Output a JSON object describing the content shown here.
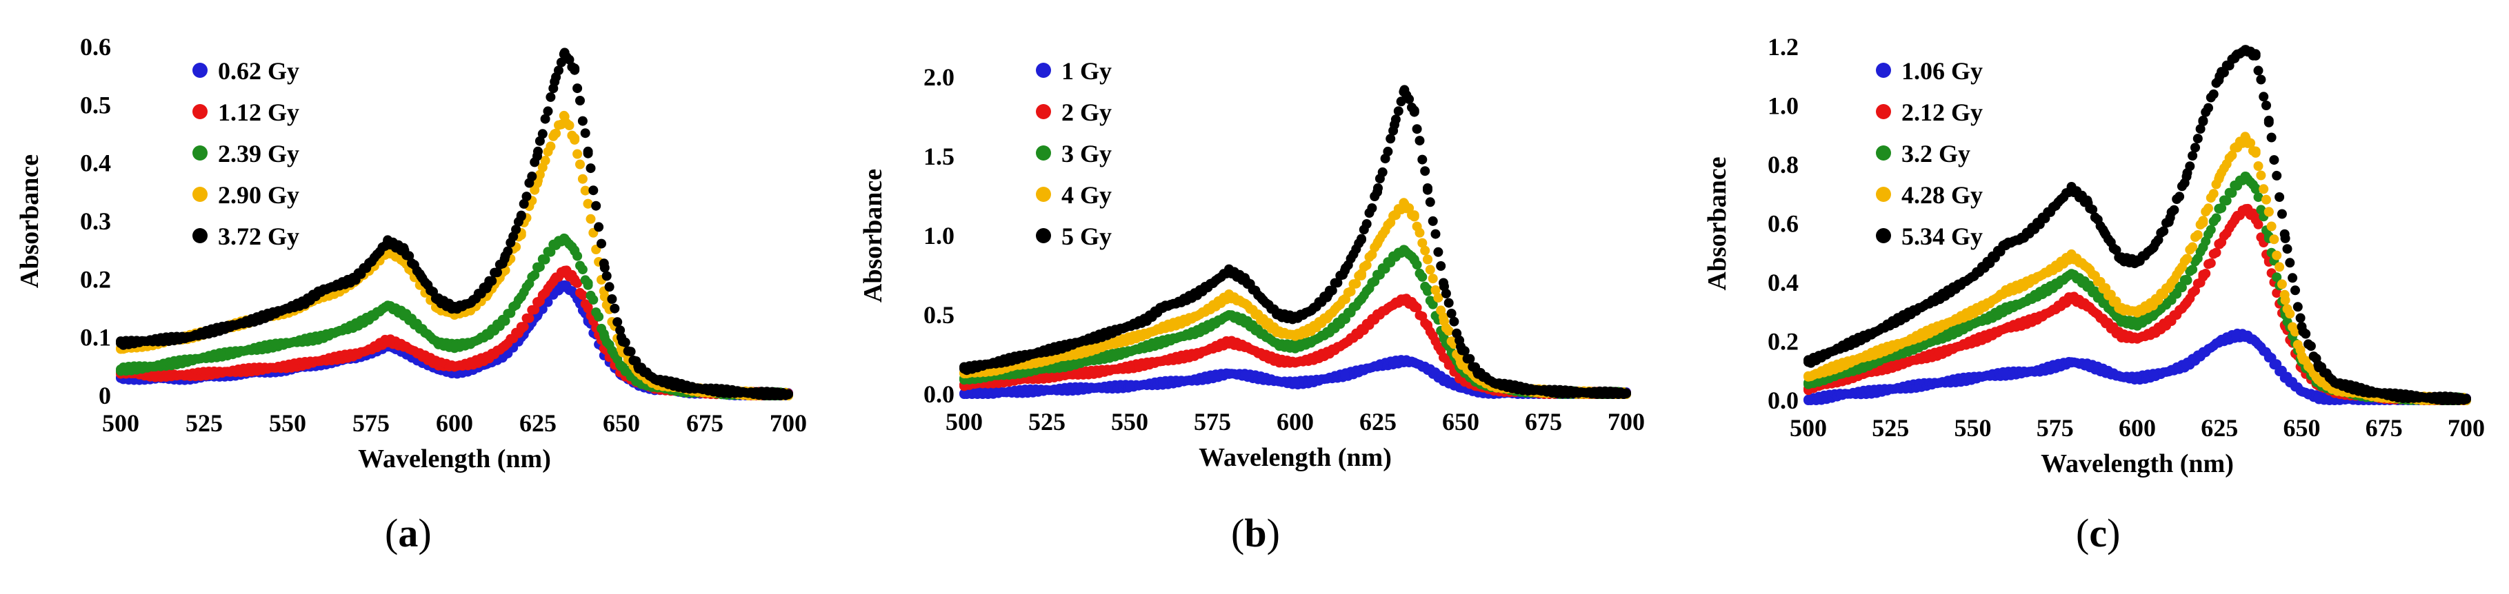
{
  "figure": {
    "captions": [
      "a",
      "b",
      "c"
    ]
  },
  "chart_data": [
    {
      "type": "scatter",
      "id": "a",
      "xlabel": "Wavelength (nm)",
      "ylabel": "Absorbance",
      "xlim": [
        500,
        700
      ],
      "ylim": [
        0,
        0.6
      ],
      "xticks": [
        500,
        525,
        550,
        575,
        600,
        625,
        650,
        675,
        700
      ],
      "xtick_labels": [
        "500",
        "525",
        "550",
        "575",
        "600",
        "625",
        "650",
        "675",
        "700"
      ],
      "yticks": [
        0,
        0.1,
        0.2,
        0.3,
        0.4,
        0.5,
        0.6
      ],
      "ytick_labels": [
        "0",
        "0.1",
        "0.2",
        "0.3",
        "0.4",
        "0.5",
        "0.6"
      ],
      "legend_position": "top-left",
      "x": [
        500,
        510,
        520,
        530,
        540,
        550,
        555,
        560,
        565,
        570,
        575,
        580,
        585,
        590,
        595,
        600,
        605,
        610,
        615,
        620,
        625,
        630,
        633,
        636,
        640,
        645,
        650,
        655,
        660,
        670,
        680,
        690,
        700
      ],
      "series": [
        {
          "name": "0.62 Gy",
          "color": "#1f1fd6",
          "values": [
            0.03,
            0.03,
            0.03,
            0.035,
            0.04,
            0.045,
            0.05,
            0.055,
            0.06,
            0.065,
            0.075,
            0.085,
            0.075,
            0.06,
            0.045,
            0.04,
            0.045,
            0.055,
            0.07,
            0.1,
            0.14,
            0.18,
            0.19,
            0.175,
            0.13,
            0.07,
            0.035,
            0.02,
            0.012,
            0.007,
            0.004,
            0.002,
            0.001
          ]
        },
        {
          "name": "1.12 Gy",
          "color": "#e81414",
          "values": [
            0.04,
            0.035,
            0.035,
            0.04,
            0.045,
            0.05,
            0.055,
            0.06,
            0.065,
            0.07,
            0.08,
            0.095,
            0.085,
            0.07,
            0.055,
            0.05,
            0.055,
            0.065,
            0.085,
            0.115,
            0.16,
            0.2,
            0.215,
            0.2,
            0.15,
            0.08,
            0.04,
            0.022,
            0.014,
            0.008,
            0.005,
            0.003,
            0.002
          ]
        },
        {
          "name": "2.39 Gy",
          "color": "#1e8c1e",
          "values": [
            0.045,
            0.05,
            0.06,
            0.07,
            0.08,
            0.09,
            0.095,
            0.1,
            0.11,
            0.12,
            0.135,
            0.155,
            0.14,
            0.115,
            0.09,
            0.085,
            0.09,
            0.105,
            0.13,
            0.17,
            0.22,
            0.26,
            0.27,
            0.25,
            0.19,
            0.1,
            0.05,
            0.025,
            0.015,
            0.008,
            0.005,
            0.003,
            0.002
          ]
        },
        {
          "name": "2.90 Gy",
          "color": "#f4b400",
          "values": [
            0.08,
            0.09,
            0.1,
            0.115,
            0.13,
            0.145,
            0.155,
            0.17,
            0.18,
            0.195,
            0.22,
            0.25,
            0.23,
            0.19,
            0.15,
            0.14,
            0.15,
            0.175,
            0.215,
            0.28,
            0.37,
            0.45,
            0.48,
            0.44,
            0.33,
            0.17,
            0.08,
            0.04,
            0.022,
            0.011,
            0.006,
            0.003,
            0.002
          ]
        },
        {
          "name": "3.72 Gy",
          "color": "#000000",
          "values": [
            0.09,
            0.095,
            0.1,
            0.115,
            0.13,
            0.15,
            0.16,
            0.18,
            0.19,
            0.2,
            0.23,
            0.265,
            0.25,
            0.205,
            0.165,
            0.15,
            0.16,
            0.19,
            0.235,
            0.31,
            0.42,
            0.54,
            0.59,
            0.56,
            0.42,
            0.22,
            0.1,
            0.05,
            0.028,
            0.014,
            0.008,
            0.004,
            0.002
          ]
        }
      ]
    },
    {
      "type": "scatter",
      "id": "b",
      "xlabel": "Wavelength (nm)",
      "ylabel": "Absorbance",
      "xlim": [
        500,
        700
      ],
      "ylim": [
        0,
        2.0
      ],
      "xticks": [
        500,
        525,
        550,
        575,
        600,
        625,
        650,
        675,
        700
      ],
      "xtick_labels": [
        "500",
        "525",
        "550",
        "575",
        "600",
        "625",
        "650",
        "675",
        "700"
      ],
      "yticks": [
        0,
        0.5,
        1.0,
        1.5,
        2.0
      ],
      "ytick_labels": [
        "0.0",
        "0.5",
        "1.0",
        "1.5",
        "2.0"
      ],
      "legend_position": "top-left",
      "x": [
        500,
        510,
        520,
        530,
        540,
        550,
        555,
        560,
        565,
        570,
        575,
        580,
        585,
        590,
        595,
        600,
        605,
        610,
        615,
        620,
        625,
        630,
        633,
        636,
        640,
        645,
        650,
        655,
        660,
        670,
        680,
        690,
        700
      ],
      "series": [
        {
          "name": "1 Gy",
          "color": "#1f1fd6",
          "values": [
            0.0,
            0.01,
            0.02,
            0.03,
            0.04,
            0.05,
            0.06,
            0.07,
            0.08,
            0.09,
            0.11,
            0.13,
            0.12,
            0.1,
            0.08,
            0.07,
            0.08,
            0.1,
            0.12,
            0.15,
            0.18,
            0.2,
            0.21,
            0.2,
            0.16,
            0.09,
            0.04,
            0.02,
            0.01,
            0.005,
            0.003,
            0.002,
            0.001
          ]
        },
        {
          "name": "2 Gy",
          "color": "#e81414",
          "values": [
            0.06,
            0.08,
            0.1,
            0.12,
            0.14,
            0.17,
            0.19,
            0.21,
            0.23,
            0.25,
            0.29,
            0.33,
            0.3,
            0.25,
            0.21,
            0.2,
            0.22,
            0.26,
            0.32,
            0.4,
            0.5,
            0.57,
            0.6,
            0.56,
            0.43,
            0.23,
            0.1,
            0.05,
            0.03,
            0.015,
            0.008,
            0.004,
            0.002
          ]
        },
        {
          "name": "3 Gy",
          "color": "#1e8c1e",
          "values": [
            0.1,
            0.12,
            0.15,
            0.18,
            0.22,
            0.27,
            0.3,
            0.33,
            0.36,
            0.39,
            0.44,
            0.5,
            0.46,
            0.38,
            0.31,
            0.3,
            0.33,
            0.39,
            0.48,
            0.6,
            0.75,
            0.87,
            0.91,
            0.85,
            0.65,
            0.35,
            0.16,
            0.08,
            0.045,
            0.02,
            0.01,
            0.005,
            0.003
          ]
        },
        {
          "name": "4 Gy",
          "color": "#f4b400",
          "values": [
            0.13,
            0.16,
            0.2,
            0.24,
            0.29,
            0.35,
            0.38,
            0.42,
            0.45,
            0.49,
            0.55,
            0.62,
            0.57,
            0.47,
            0.39,
            0.37,
            0.41,
            0.49,
            0.6,
            0.76,
            0.96,
            1.13,
            1.2,
            1.12,
            0.85,
            0.46,
            0.2,
            0.1,
            0.055,
            0.025,
            0.012,
            0.006,
            0.003
          ]
        },
        {
          "name": "5 Gy",
          "color": "#000000",
          "values": [
            0.16,
            0.2,
            0.25,
            0.3,
            0.36,
            0.43,
            0.47,
            0.55,
            0.58,
            0.63,
            0.7,
            0.78,
            0.72,
            0.6,
            0.5,
            0.48,
            0.53,
            0.63,
            0.78,
            0.98,
            1.3,
            1.7,
            1.92,
            1.78,
            1.3,
            0.68,
            0.3,
            0.14,
            0.07,
            0.03,
            0.015,
            0.008,
            0.004
          ]
        }
      ]
    },
    {
      "type": "scatter",
      "id": "c",
      "xlabel": "Wavelength (nm)",
      "ylabel": "Absorbance",
      "xlim": [
        500,
        700
      ],
      "ylim": [
        0,
        1.2
      ],
      "xticks": [
        500,
        525,
        550,
        575,
        600,
        625,
        650,
        675,
        700
      ],
      "xtick_labels": [
        "500",
        "525",
        "550",
        "575",
        "600",
        "625",
        "650",
        "675",
        "700"
      ],
      "yticks": [
        0,
        0.2,
        0.4,
        0.6,
        0.8,
        1.0,
        1.2
      ],
      "ytick_labels": [
        "0.0",
        "0.2",
        "0.4",
        "0.6",
        "0.8",
        "1.0",
        "1.2"
      ],
      "legend_position": "top-left",
      "x": [
        500,
        510,
        520,
        530,
        540,
        550,
        555,
        560,
        565,
        570,
        575,
        580,
        585,
        590,
        595,
        600,
        605,
        610,
        615,
        620,
        625,
        630,
        633,
        636,
        640,
        645,
        650,
        655,
        660,
        670,
        680,
        690,
        700
      ],
      "series": [
        {
          "name": "1.06 Gy",
          "color": "#1f1fd6",
          "values": [
            0.0,
            0.02,
            0.03,
            0.045,
            0.06,
            0.075,
            0.085,
            0.09,
            0.095,
            0.1,
            0.115,
            0.13,
            0.12,
            0.1,
            0.08,
            0.075,
            0.085,
            0.1,
            0.12,
            0.16,
            0.2,
            0.22,
            0.22,
            0.2,
            0.15,
            0.08,
            0.03,
            0.01,
            0.005,
            0.002,
            0.001,
            0.0,
            0.0
          ]
        },
        {
          "name": "2.12 Gy",
          "color": "#e81414",
          "values": [
            0.04,
            0.07,
            0.1,
            0.13,
            0.16,
            0.2,
            0.22,
            0.245,
            0.26,
            0.28,
            0.31,
            0.35,
            0.32,
            0.27,
            0.22,
            0.21,
            0.23,
            0.27,
            0.33,
            0.42,
            0.53,
            0.62,
            0.65,
            0.62,
            0.47,
            0.25,
            0.11,
            0.05,
            0.03,
            0.015,
            0.008,
            0.004,
            0.002
          ]
        },
        {
          "name": "3.2 Gy",
          "color": "#1e8c1e",
          "values": [
            0.06,
            0.09,
            0.13,
            0.17,
            0.21,
            0.26,
            0.28,
            0.31,
            0.33,
            0.36,
            0.39,
            0.43,
            0.39,
            0.33,
            0.27,
            0.26,
            0.29,
            0.34,
            0.41,
            0.52,
            0.65,
            0.73,
            0.76,
            0.72,
            0.55,
            0.29,
            0.13,
            0.06,
            0.035,
            0.017,
            0.009,
            0.005,
            0.003
          ]
        },
        {
          "name": "4.28 Gy",
          "color": "#f4b400",
          "values": [
            0.08,
            0.12,
            0.16,
            0.2,
            0.25,
            0.3,
            0.33,
            0.37,
            0.39,
            0.42,
            0.45,
            0.49,
            0.45,
            0.38,
            0.31,
            0.3,
            0.33,
            0.39,
            0.48,
            0.61,
            0.76,
            0.86,
            0.89,
            0.84,
            0.64,
            0.34,
            0.15,
            0.07,
            0.04,
            0.02,
            0.01,
            0.005,
            0.003
          ]
        },
        {
          "name": "5.34 Gy",
          "color": "#000000",
          "values": [
            0.13,
            0.18,
            0.23,
            0.29,
            0.35,
            0.42,
            0.47,
            0.53,
            0.55,
            0.6,
            0.66,
            0.72,
            0.67,
            0.57,
            0.48,
            0.47,
            0.52,
            0.62,
            0.76,
            0.95,
            1.1,
            1.17,
            1.19,
            1.17,
            0.95,
            0.55,
            0.25,
            0.12,
            0.06,
            0.03,
            0.015,
            0.008,
            0.004
          ]
        }
      ]
    }
  ]
}
